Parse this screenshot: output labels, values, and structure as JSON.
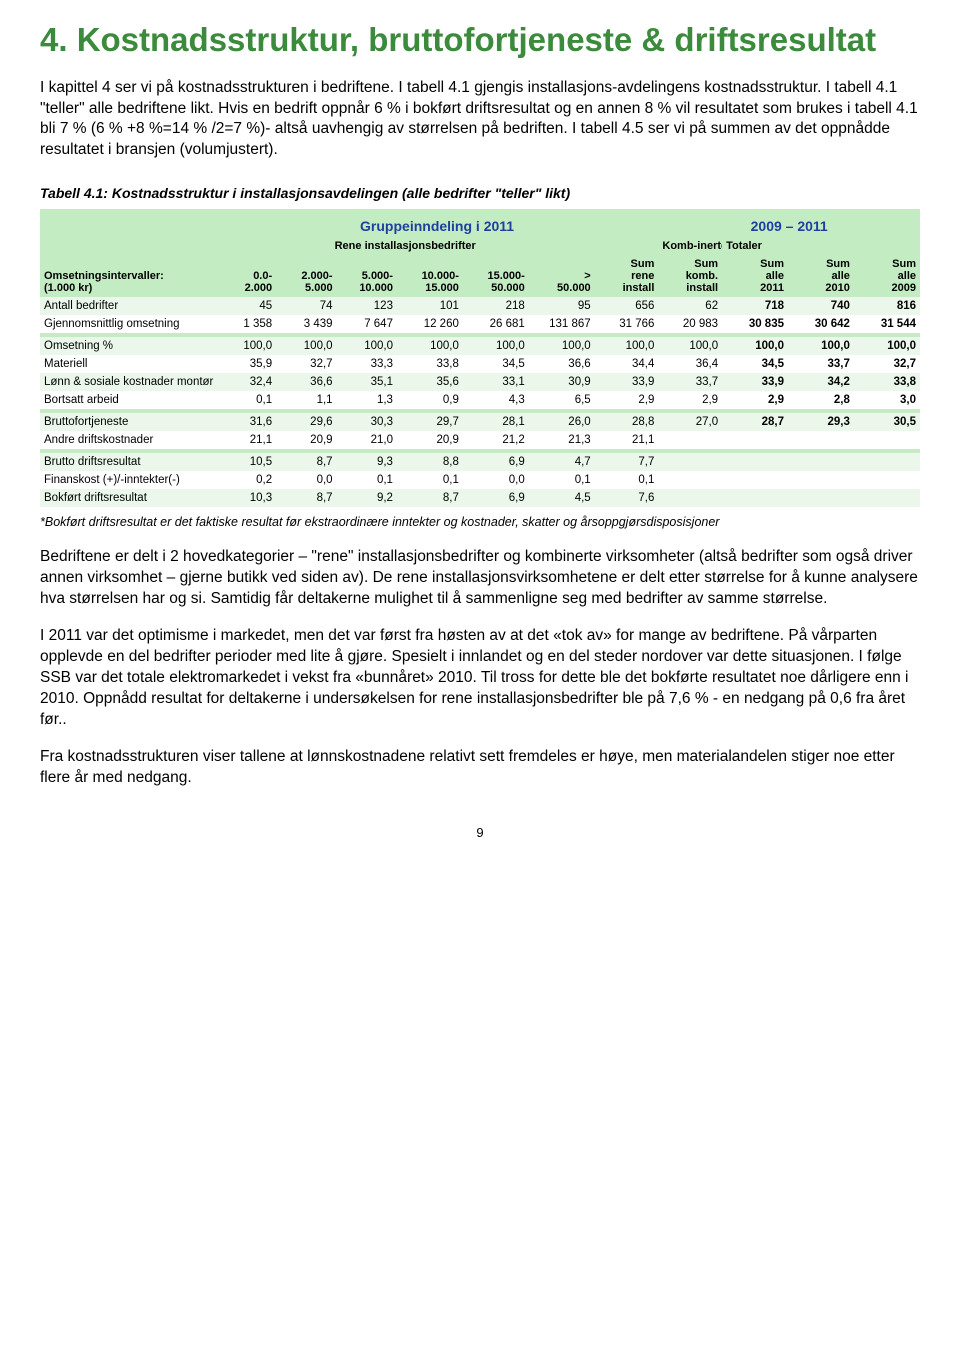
{
  "heading": "4. Kostnadsstruktur, bruttofortjeneste & driftsresultat",
  "para1": "I kapittel 4 ser vi på kostnadsstrukturen i bedriftene. I tabell 4.1 gjengis installasjons-avdelingens kostnadsstruktur. I tabell 4.1 \"teller\" alle bedriftene likt. Hvis en bedrift oppnår 6 % i bokført driftsresultat og en annen 8 % vil resultatet som brukes i tabell 4.1 bli 7 % (6 % +8 %=14 % /2=7 %)- altså uavhengig av størrelsen på bedriften. I tabell 4.5 ser vi på summen av det oppnådde resultatet i bransjen (volumjustert).",
  "tableCaption": "Tabell 4.1: Kostnadsstruktur i installasjonsavdelingen (alle bedrifter \"teller\" likt)",
  "table": {
    "topHeader": {
      "left": "Gruppeinndeling i 2011",
      "right": "2009 – 2011"
    },
    "subHeader": {
      "left": "Rene installasjonsbedrifter",
      "komb": "Komb-inerte",
      "tot": "Totaler"
    },
    "rowIntervalsLabel": "Omsetningsintervaller:",
    "rowIntervalsUnit": "(1.000 kr)",
    "intervals": [
      "0.0-\n2.000",
      "2.000-\n5.000",
      "5.000-\n10.000",
      "10.000-\n15.000",
      "15.000-\n50.000",
      ">\n50.000"
    ],
    "sumLabels": [
      "Sum\nrene\ninstall",
      "Sum\nkomb.\ninstall",
      "Sum\nalle\n2011",
      "Sum\nalle\n2010",
      "Sum\nalle\n2009"
    ],
    "rows": [
      {
        "label": "Antall bedrifter",
        "v": [
          "45",
          "74",
          "123",
          "101",
          "218",
          "95",
          "656",
          "62",
          "718",
          "740",
          "816"
        ],
        "z": "a"
      },
      {
        "label": "Gjennomsnittlig omsetning",
        "v": [
          "1 358",
          "3 439",
          "7 647",
          "12 260",
          "26 681",
          "131 867",
          "31 766",
          "20 983",
          "30 835",
          "30 642",
          "31 544"
        ],
        "z": "b"
      },
      {
        "label": "Omsetning %",
        "v": [
          "100,0",
          "100,0",
          "100,0",
          "100,0",
          "100,0",
          "100,0",
          "100,0",
          "100,0",
          "100,0",
          "100,0",
          "100,0"
        ],
        "z": "a",
        "sec": true
      },
      {
        "label": "Materiell",
        "v": [
          "35,9",
          "32,7",
          "33,3",
          "33,8",
          "34,5",
          "36,6",
          "34,4",
          "36,4",
          "34,5",
          "33,7",
          "32,7"
        ],
        "z": "b"
      },
      {
        "label": "Lønn & sosiale kostnader montør",
        "v": [
          "32,4",
          "36,6",
          "35,1",
          "35,6",
          "33,1",
          "30,9",
          "33,9",
          "33,7",
          "33,9",
          "34,2",
          "33,8"
        ],
        "z": "a"
      },
      {
        "label": "Bortsatt arbeid",
        "v": [
          "0,1",
          "1,1",
          "1,3",
          "0,9",
          "4,3",
          "6,5",
          "2,9",
          "2,9",
          "2,9",
          "2,8",
          "3,0"
        ],
        "z": "b"
      },
      {
        "label": "Bruttofortjeneste",
        "v": [
          "31,6",
          "29,6",
          "30,3",
          "29,7",
          "28,1",
          "26,0",
          "28,8",
          "27,0",
          "28,7",
          "29,3",
          "30,5"
        ],
        "z": "a",
        "sec": true
      },
      {
        "label": "Andre driftskostnader",
        "v": [
          "21,1",
          "20,9",
          "21,0",
          "20,9",
          "21,2",
          "21,3",
          "21,1",
          "",
          "",
          "",
          ""
        ],
        "z": "b"
      },
      {
        "label": "Brutto driftsresultat",
        "v": [
          "10,5",
          "8,7",
          "9,3",
          "8,8",
          "6,9",
          "4,7",
          "7,7",
          "",
          "",
          "",
          ""
        ],
        "z": "a",
        "sec": true
      },
      {
        "label": "Finanskost (+)/-inntekter(-)",
        "v": [
          "0,2",
          "0,0",
          "0,1",
          "0,1",
          "0,0",
          "0,1",
          "0,1",
          "",
          "",
          "",
          ""
        ],
        "z": "b"
      },
      {
        "label": "Bokført driftsresultat",
        "v": [
          "10,3",
          "8,7",
          "9,2",
          "8,7",
          "6,9",
          "4,5",
          "7,6",
          "",
          "",
          "",
          ""
        ],
        "z": "a"
      }
    ],
    "colors": {
      "green": "#c3ecc3",
      "lightgreen": "#eaf7ea",
      "blue": "#1f3f9f"
    }
  },
  "footnote": "*Bokført driftsresultat er det faktiske resultat før ekstraordinære inntekter og kostnader, skatter og årsoppgjørsdisposisjoner",
  "para2": "Bedriftene er delt i 2 hovedkategorier – \"rene\" installasjonsbedrifter og kombinerte virksomheter (altså bedrifter som også driver annen virksomhet – gjerne butikk ved siden av). De rene installasjonsvirksomhetene er delt etter størrelse for å kunne analysere hva størrelsen har og si. Samtidig får deltakerne mulighet til å sammenligne seg med bedrifter av samme størrelse.",
  "para3": "I 2011 var det optimisme i markedet, men det var først fra høsten av at det «tok av» for mange av bedriftene. På vårparten opplevde en del bedrifter perioder med lite å gjøre. Spesielt i innlandet og en del steder nordover var dette situasjonen. I følge SSB var det totale elektromarkedet i vekst fra «bunnåret» 2010. Til tross for dette ble det bokførte resultatet noe dårligere enn i 2010. Oppnådd resultat for deltakerne i undersøkelsen for rene installasjonsbedrifter ble på 7,6 % - en nedgang på 0,6 fra året før..",
  "para4": "Fra kostnadsstrukturen viser tallene at lønnskostnadene relativt sett fremdeles er høye, men materialandelen stiger noe etter flere år med nedgang.",
  "pageNum": "9"
}
